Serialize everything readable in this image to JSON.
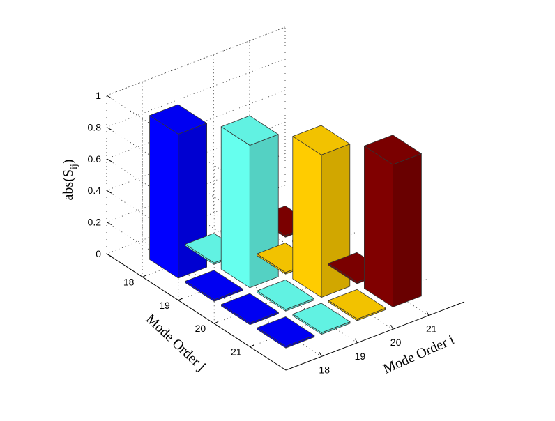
{
  "chart_data": {
    "type": "bar3",
    "title": "",
    "xlabel": "Mode Order i",
    "ylabel": "Mode Order j",
    "zlabel_base": "abs(S",
    "zlabel_sub": "ij",
    "zlabel_close": ")",
    "i_ticks": [
      "18",
      "19",
      "20",
      "21"
    ],
    "j_ticks": [
      "18",
      "19",
      "20",
      "21"
    ],
    "z_ticks": [
      "0",
      "0.2",
      "0.4",
      "0.6",
      "0.8",
      "1"
    ],
    "zlim": [
      0,
      1
    ],
    "grid": true,
    "series": [
      {
        "i": "18",
        "color": "#0000ff",
        "values": [
          0.91,
          0.01,
          0.01,
          0.01
        ]
      },
      {
        "i": "19",
        "color": "#66ffee",
        "values": [
          0.01,
          0.9,
          0.01,
          0.01
        ]
      },
      {
        "i": "20",
        "color": "#ffcc00",
        "values": [
          0.01,
          0.01,
          0.9,
          0.01
        ]
      },
      {
        "i": "21",
        "color": "#800000",
        "values": [
          0.01,
          0.01,
          0.01,
          0.9
        ]
      }
    ]
  }
}
